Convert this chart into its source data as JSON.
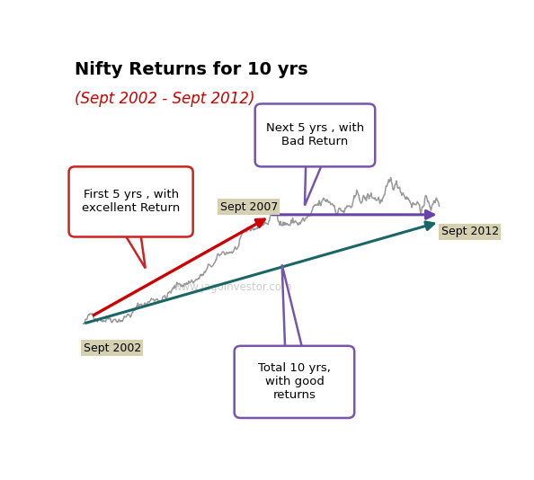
{
  "title_line1": "Nifty Returns for 10 yrs",
  "title_line2": "(Sept 2002 - Sept 2012)",
  "watermark": "www.jagoinvestor.com",
  "label_sept2002": "Sept 2002",
  "label_sept2007": "Sept 2007",
  "label_sept2012": "Sept 2012",
  "annotation_first5": "First 5 yrs , with\nexcellent Return",
  "annotation_next5": "Next 5 yrs , with\nBad Return",
  "annotation_total10": "Total 10 yrs,\nwith good\nreturns",
  "color_red": "#CC0000",
  "color_purple": "#6644AA",
  "color_teal": "#1A6666",
  "color_gray_line": "#999999",
  "color_box_fill_tan": "#D4D0B0",
  "color_box_border_red": "#CC2222",
  "color_box_border_purple": "#7755AA",
  "background_color": "#FFFFFF",
  "figsize": [
    5.94,
    5.34
  ],
  "dpi": 100,
  "xlim": [
    0,
    1
  ],
  "ylim": [
    0,
    1
  ],
  "seed": 42,
  "pt_2002": [
    0.04,
    0.28
  ],
  "pt_2007": [
    0.49,
    0.565
  ],
  "pt_2012": [
    0.9,
    0.565
  ]
}
